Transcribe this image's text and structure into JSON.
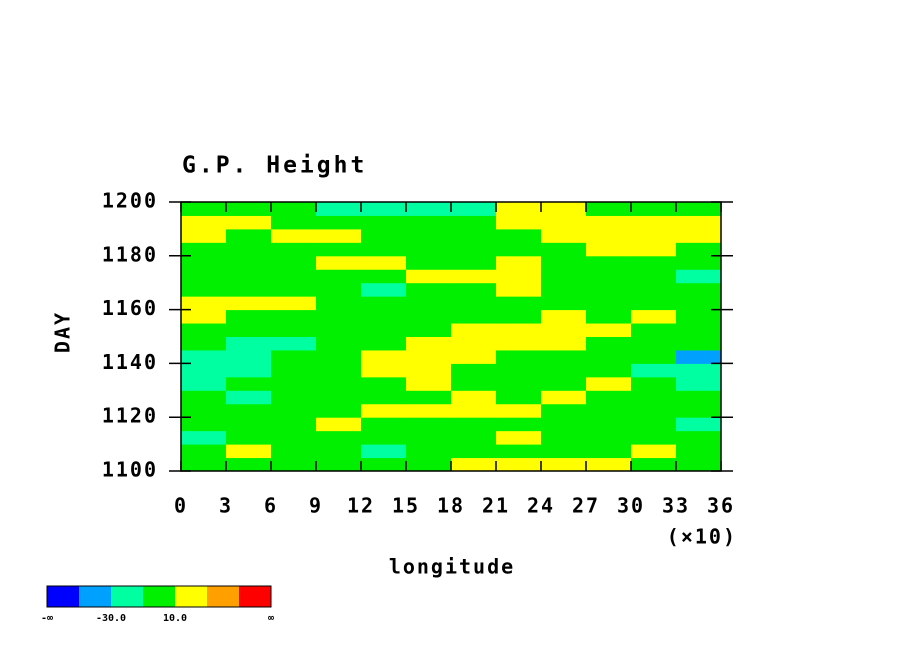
{
  "chart_data": {
    "type": "contour",
    "title": "G.P. Height",
    "xlabel": "longitude",
    "x_multiplier": "(×10)",
    "ylabel": "DAY",
    "xlim": [
      0,
      36
    ],
    "ylim": [
      1100,
      1200
    ],
    "xticks": [
      0,
      3,
      6,
      9,
      12,
      15,
      18,
      21,
      24,
      27,
      30,
      33,
      36
    ],
    "yticks": [
      1100,
      1120,
      1140,
      1160,
      1180,
      1200
    ],
    "x": [
      1.5,
      4.5,
      7.5,
      10.5,
      13.5,
      16.5,
      19.5,
      22.5,
      25.5,
      28.5,
      31.5,
      34.5
    ],
    "y": [
      1102.5,
      1107.5,
      1112.5,
      1117.5,
      1122.5,
      1127.5,
      1132.5,
      1137.5,
      1142.5,
      1147.5,
      1152.5,
      1157.5,
      1162.5,
      1167.5,
      1172.5,
      1177.5,
      1182.5,
      1187.5,
      1192.5,
      1197.5
    ],
    "z": [
      [
        0,
        0,
        0,
        0,
        0,
        0,
        20,
        20,
        20,
        20,
        0,
        0
      ],
      [
        0,
        20,
        0,
        0,
        -20,
        0,
        0,
        0,
        0,
        0,
        20,
        0
      ],
      [
        -20,
        0,
        0,
        0,
        0,
        0,
        0,
        20,
        0,
        0,
        0,
        0
      ],
      [
        0,
        0,
        0,
        20,
        0,
        0,
        0,
        0,
        0,
        0,
        0,
        -20
      ],
      [
        0,
        0,
        0,
        0,
        20,
        20,
        20,
        20,
        0,
        0,
        0,
        0
      ],
      [
        0,
        -20,
        0,
        0,
        0,
        0,
        20,
        0,
        20,
        0,
        0,
        0
      ],
      [
        -20,
        0,
        0,
        0,
        0,
        20,
        0,
        0,
        0,
        20,
        0,
        -20
      ],
      [
        -20,
        -20,
        0,
        0,
        20,
        20,
        0,
        0,
        0,
        0,
        -20,
        -20
      ],
      [
        -20,
        -20,
        0,
        0,
        20,
        20,
        20,
        0,
        0,
        0,
        0,
        -40
      ],
      [
        0,
        -20,
        -20,
        0,
        0,
        20,
        20,
        20,
        20,
        0,
        0,
        0
      ],
      [
        0,
        0,
        0,
        0,
        0,
        0,
        20,
        20,
        20,
        20,
        0,
        0
      ],
      [
        20,
        0,
        0,
        0,
        0,
        0,
        0,
        0,
        20,
        0,
        20,
        0
      ],
      [
        20,
        20,
        20,
        0,
        0,
        0,
        0,
        0,
        0,
        0,
        0,
        0
      ],
      [
        0,
        0,
        0,
        0,
        -20,
        0,
        0,
        20,
        0,
        0,
        0,
        0
      ],
      [
        0,
        0,
        0,
        0,
        0,
        20,
        20,
        20,
        0,
        0,
        0,
        -20
      ],
      [
        0,
        0,
        0,
        20,
        20,
        0,
        0,
        20,
        0,
        0,
        0,
        0
      ],
      [
        0,
        0,
        0,
        0,
        0,
        0,
        0,
        0,
        0,
        20,
        20,
        0
      ],
      [
        20,
        0,
        20,
        20,
        0,
        0,
        0,
        0,
        20,
        20,
        20,
        20
      ],
      [
        20,
        20,
        0,
        0,
        0,
        0,
        0,
        20,
        20,
        20,
        20,
        20
      ],
      [
        0,
        0,
        0,
        -20,
        -20,
        -20,
        -20,
        20,
        20,
        0,
        0,
        0
      ]
    ],
    "levels": [
      -50,
      -30,
      -10,
      10,
      30,
      50
    ],
    "colors": [
      "#0000ff",
      "#00a0ff",
      "#00ffa0",
      "#00f000",
      "#ffff00",
      "#ffa000",
      "#ff0000"
    ],
    "cbar_ticks": [
      "-∞",
      {
        "value": -30,
        "label": "-30.0"
      },
      {
        "value": 10,
        "label": "10.0"
      },
      "∞"
    ]
  }
}
